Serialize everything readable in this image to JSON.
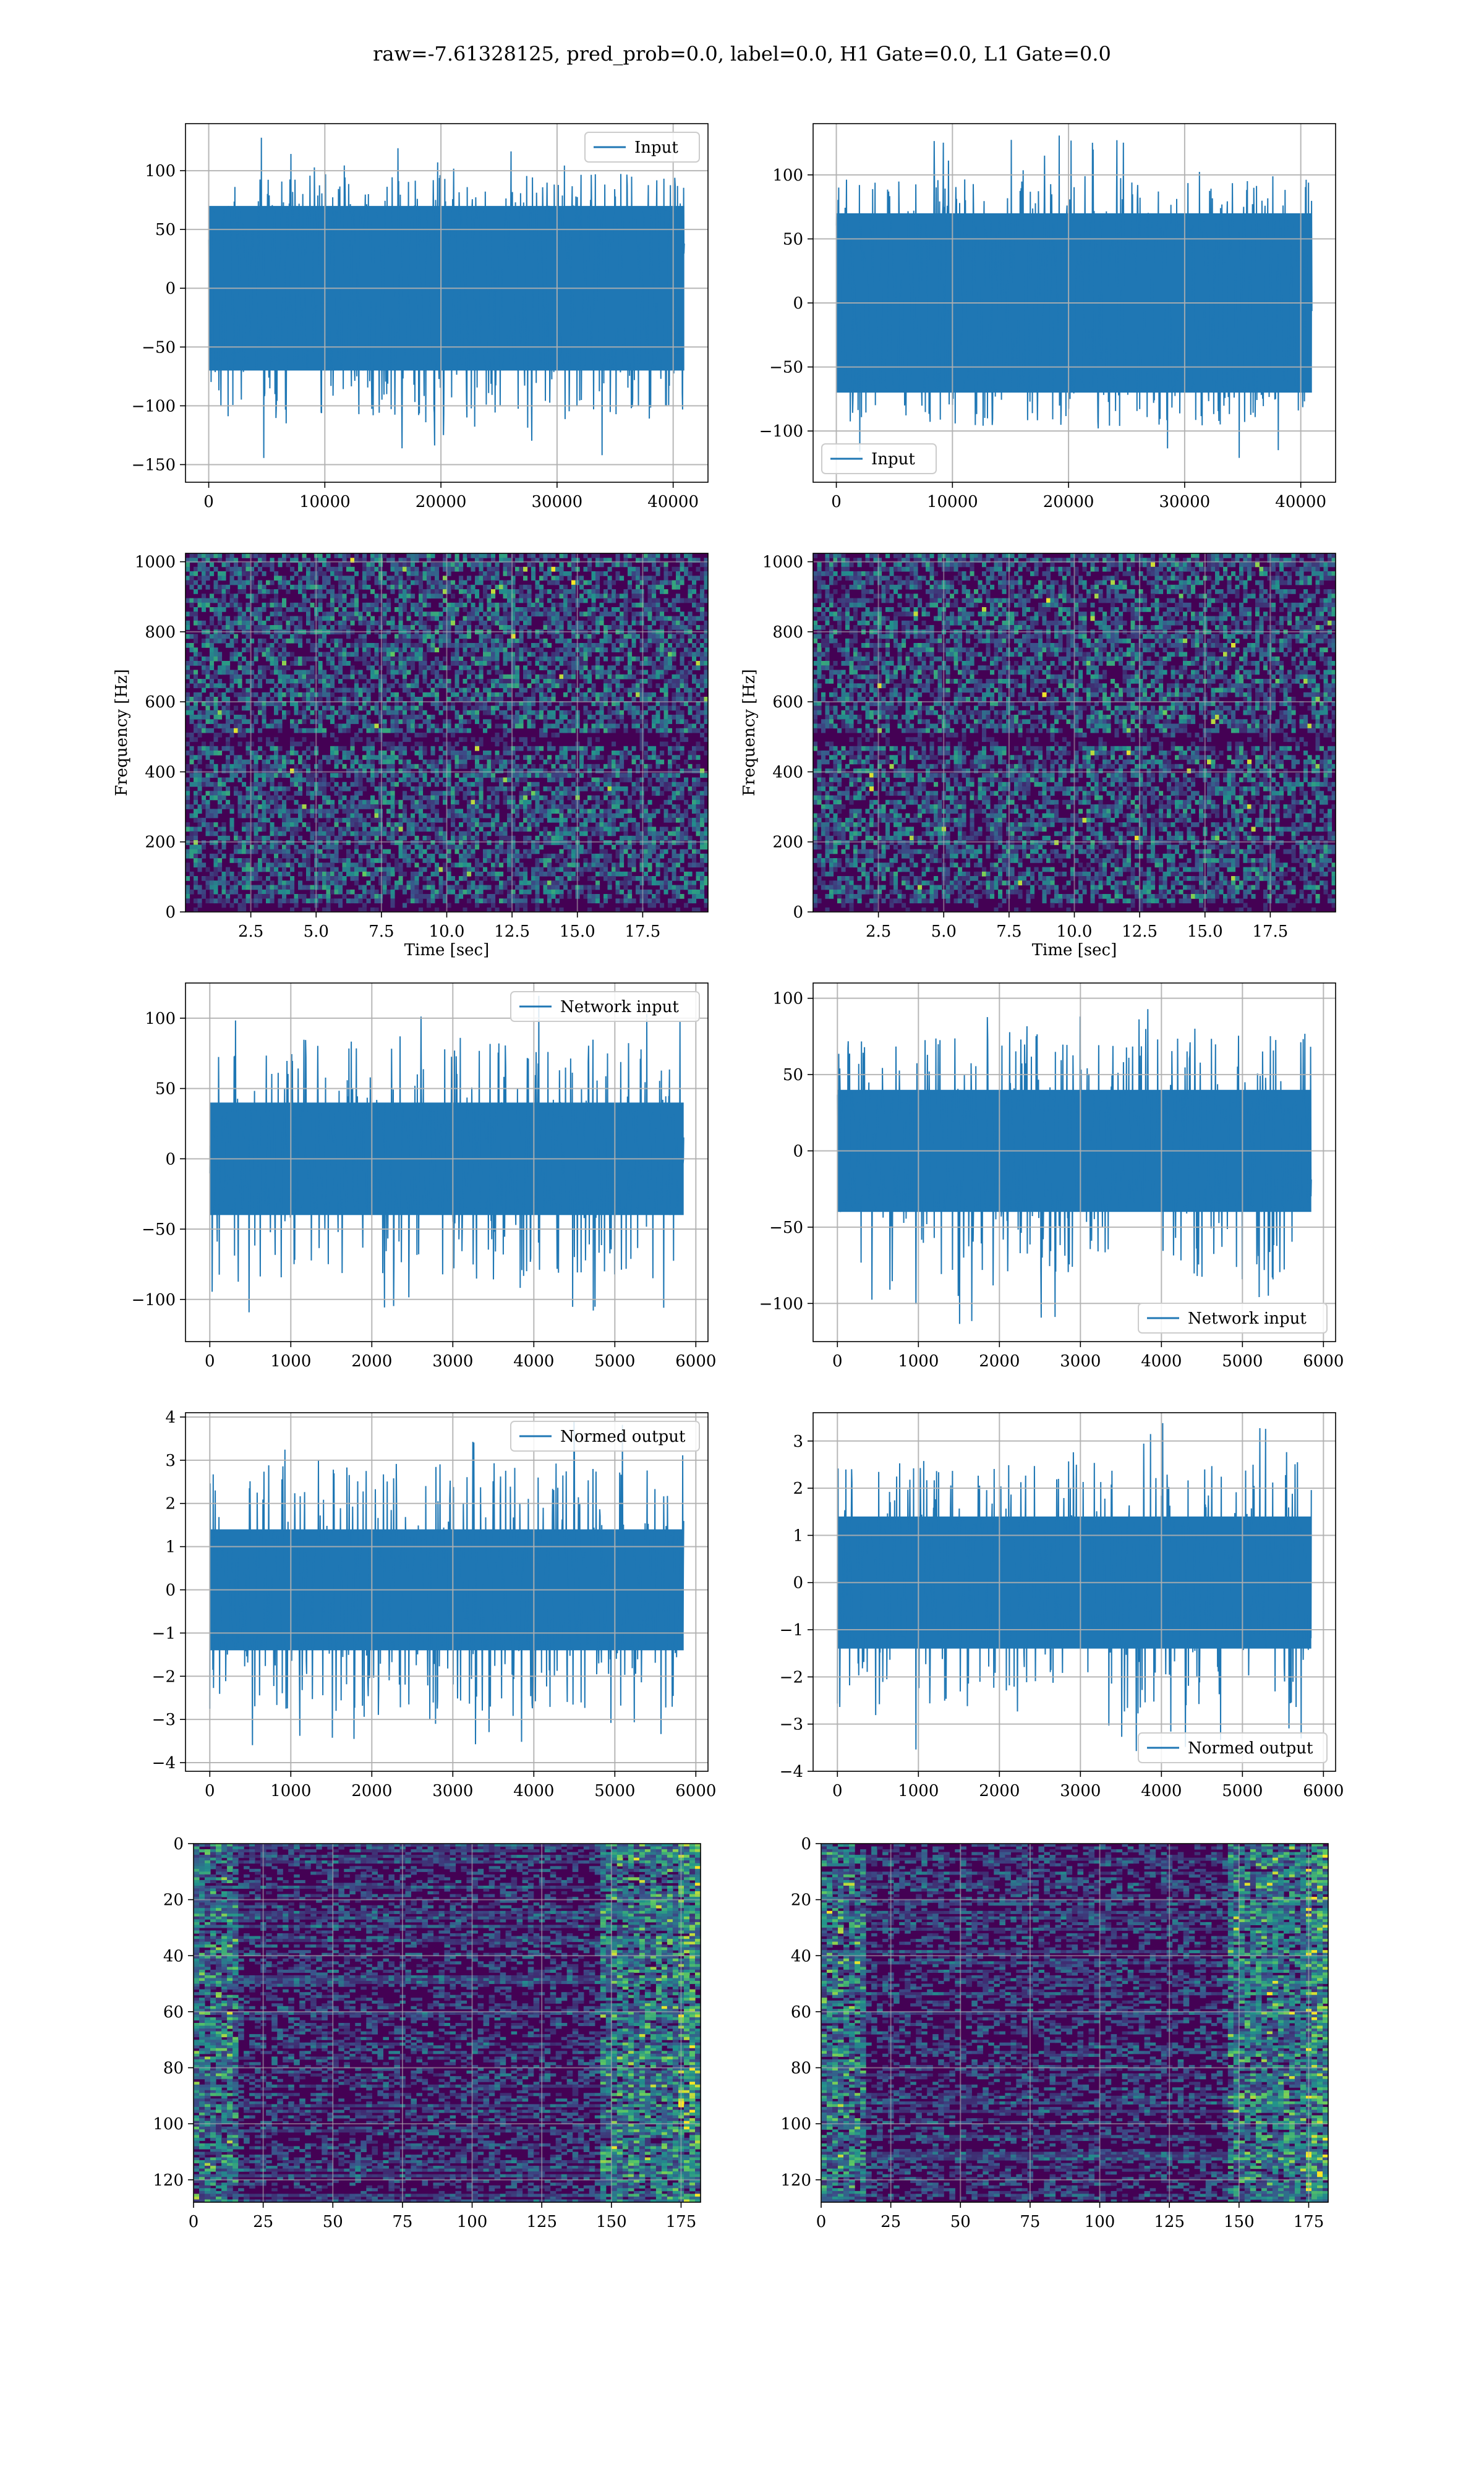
{
  "figure": {
    "title": "raw=-7.61328125, pred_prob=0.0, label=0.0, H1 Gate=0.0, L1 Gate=0.0"
  },
  "colors": {
    "line": "#1f77b4",
    "grid": "#b0b0b0",
    "heat_dark": "#440154",
    "heat_mid": "#3b528b",
    "heat_teal": "#21918c",
    "heat_green": "#5ec962",
    "heat_yellow": "#fde725"
  },
  "chart_data": [
    {
      "id": "input-left",
      "type": "line",
      "legend": "Input",
      "legend_loc": "upper-right",
      "grid": true,
      "x": [
        0,
        40960
      ],
      "xlim": [
        -2000,
        43000
      ],
      "ylim": [
        -165,
        140
      ],
      "xticks": [
        0,
        10000,
        20000,
        30000,
        40000
      ],
      "xtick_labels": [
        "0",
        "10000",
        "20000",
        "30000",
        "40000"
      ],
      "yticks": [
        -150,
        -100,
        -50,
        0,
        50,
        100
      ],
      "ytick_labels": [
        "−150",
        "−100",
        "−50",
        "0",
        "50",
        "100"
      ],
      "band": [
        -70,
        70
      ],
      "extremes": [
        -150,
        130
      ]
    },
    {
      "id": "input-right",
      "type": "line",
      "legend": "Input",
      "legend_loc": "lower-left",
      "grid": true,
      "x": [
        0,
        40960
      ],
      "xlim": [
        -2000,
        43000
      ],
      "ylim": [
        -140,
        140
      ],
      "xticks": [
        0,
        10000,
        20000,
        30000,
        40000
      ],
      "xtick_labels": [
        "0",
        "10000",
        "20000",
        "30000",
        "40000"
      ],
      "yticks": [
        -100,
        -50,
        0,
        50,
        100
      ],
      "ytick_labels": [
        "−100",
        "−50",
        "0",
        "50",
        "100"
      ],
      "band": [
        -70,
        70
      ],
      "extremes": [
        -128,
        133
      ]
    },
    {
      "id": "spectrogram-left",
      "type": "heatmap",
      "xlabel": "Time [sec]",
      "ylabel": "Frequency [Hz]",
      "grid": true,
      "xlim": [
        0,
        20
      ],
      "ylim": [
        0,
        1024
      ],
      "xticks": [
        2.5,
        5.0,
        7.5,
        10.0,
        12.5,
        15.0,
        17.5
      ],
      "xtick_labels": [
        "2.5",
        "5.0",
        "7.5",
        "10.0",
        "12.5",
        "15.0",
        "17.5"
      ],
      "yticks": [
        0,
        200,
        400,
        600,
        800,
        1000
      ],
      "ytick_labels": [
        "0",
        "200",
        "400",
        "600",
        "800",
        "1000"
      ]
    },
    {
      "id": "spectrogram-right",
      "type": "heatmap",
      "xlabel": "Time [sec]",
      "ylabel": "Frequency [Hz]",
      "grid": true,
      "xlim": [
        0,
        20
      ],
      "ylim": [
        0,
        1024
      ],
      "xticks": [
        2.5,
        5.0,
        7.5,
        10.0,
        12.5,
        15.0,
        17.5
      ],
      "xtick_labels": [
        "2.5",
        "5.0",
        "7.5",
        "10.0",
        "12.5",
        "15.0",
        "17.5"
      ],
      "yticks": [
        0,
        200,
        400,
        600,
        800,
        1000
      ],
      "ytick_labels": [
        "0",
        "200",
        "400",
        "600",
        "800",
        "1000"
      ]
    },
    {
      "id": "network-input-left",
      "type": "line",
      "legend": "Network input",
      "legend_loc": "upper-right",
      "grid": true,
      "x": [
        0,
        5850
      ],
      "xlim": [
        -300,
        6150
      ],
      "ylim": [
        -130,
        125
      ],
      "xticks": [
        0,
        1000,
        2000,
        3000,
        4000,
        5000,
        6000
      ],
      "xtick_labels": [
        "0",
        "1000",
        "2000",
        "3000",
        "4000",
        "5000",
        "6000"
      ],
      "yticks": [
        -100,
        -50,
        0,
        50,
        100
      ],
      "ytick_labels": [
        "−100",
        "−50",
        "0",
        "50",
        "100"
      ],
      "band": [
        -40,
        40
      ],
      "extremes": [
        -117,
        117
      ]
    },
    {
      "id": "network-input-right",
      "type": "line",
      "legend": "Network input",
      "legend_loc": "lower-right",
      "grid": true,
      "x": [
        0,
        5850
      ],
      "xlim": [
        -300,
        6150
      ],
      "ylim": [
        -125,
        110
      ],
      "xticks": [
        0,
        1000,
        2000,
        3000,
        4000,
        5000,
        6000
      ],
      "xtick_labels": [
        "0",
        "1000",
        "2000",
        "3000",
        "4000",
        "5000",
        "6000"
      ],
      "yticks": [
        -100,
        -50,
        0,
        50,
        100
      ],
      "ytick_labels": [
        "−100",
        "−50",
        "0",
        "50",
        "100"
      ],
      "band": [
        -40,
        40
      ],
      "extremes": [
        -114,
        104
      ]
    },
    {
      "id": "normed-output-left",
      "type": "line",
      "legend": "Normed output",
      "legend_loc": "upper-right",
      "grid": true,
      "x": [
        0,
        5850
      ],
      "xlim": [
        -300,
        6150
      ],
      "ylim": [
        -4.2,
        4.1
      ],
      "xticks": [
        0,
        1000,
        2000,
        3000,
        4000,
        5000,
        6000
      ],
      "xtick_labels": [
        "0",
        "1000",
        "2000",
        "3000",
        "4000",
        "5000",
        "6000"
      ],
      "yticks": [
        -4,
        -3,
        -2,
        -1,
        0,
        1,
        2,
        3,
        4
      ],
      "ytick_labels": [
        "−4",
        "−3",
        "−2",
        "−1",
        "0",
        "1",
        "2",
        "3",
        "4"
      ],
      "band": [
        -1.4,
        1.4
      ],
      "extremes": [
        -3.8,
        3.9
      ]
    },
    {
      "id": "normed-output-right",
      "type": "line",
      "legend": "Normed output",
      "legend_loc": "lower-right",
      "grid": true,
      "x": [
        0,
        5850
      ],
      "xlim": [
        -300,
        6150
      ],
      "ylim": [
        -4.0,
        3.6
      ],
      "xticks": [
        0,
        1000,
        2000,
        3000,
        4000,
        5000,
        6000
      ],
      "xtick_labels": [
        "0",
        "1000",
        "2000",
        "3000",
        "4000",
        "5000",
        "6000"
      ],
      "yticks": [
        -4,
        -3,
        -2,
        -1,
        0,
        1,
        2,
        3
      ],
      "ytick_labels": [
        "−4",
        "−3",
        "−2",
        "−1",
        "0",
        "1",
        "2",
        "3"
      ],
      "band": [
        -1.4,
        1.4
      ],
      "extremes": [
        -3.7,
        3.4
      ]
    },
    {
      "id": "feature-map-left",
      "type": "heatmap",
      "grid": true,
      "xlim": [
        0,
        182
      ],
      "ylim": [
        128,
        0
      ],
      "xticks": [
        0,
        25,
        50,
        75,
        100,
        125,
        150,
        175
      ],
      "xtick_labels": [
        "0",
        "25",
        "50",
        "75",
        "100",
        "125",
        "150",
        "175"
      ],
      "yticks": [
        0,
        20,
        40,
        60,
        80,
        100,
        120
      ],
      "ytick_labels": [
        "0",
        "20",
        "40",
        "60",
        "80",
        "100",
        "120"
      ]
    },
    {
      "id": "feature-map-right",
      "type": "heatmap",
      "grid": true,
      "xlim": [
        0,
        182
      ],
      "ylim": [
        128,
        0
      ],
      "xticks": [
        0,
        25,
        50,
        75,
        100,
        125,
        150,
        175
      ],
      "xtick_labels": [
        "0",
        "25",
        "50",
        "75",
        "100",
        "125",
        "150",
        "175"
      ],
      "yticks": [
        0,
        20,
        40,
        60,
        80,
        100,
        120
      ],
      "ytick_labels": [
        "0",
        "20",
        "40",
        "60",
        "80",
        "100",
        "120"
      ]
    }
  ]
}
